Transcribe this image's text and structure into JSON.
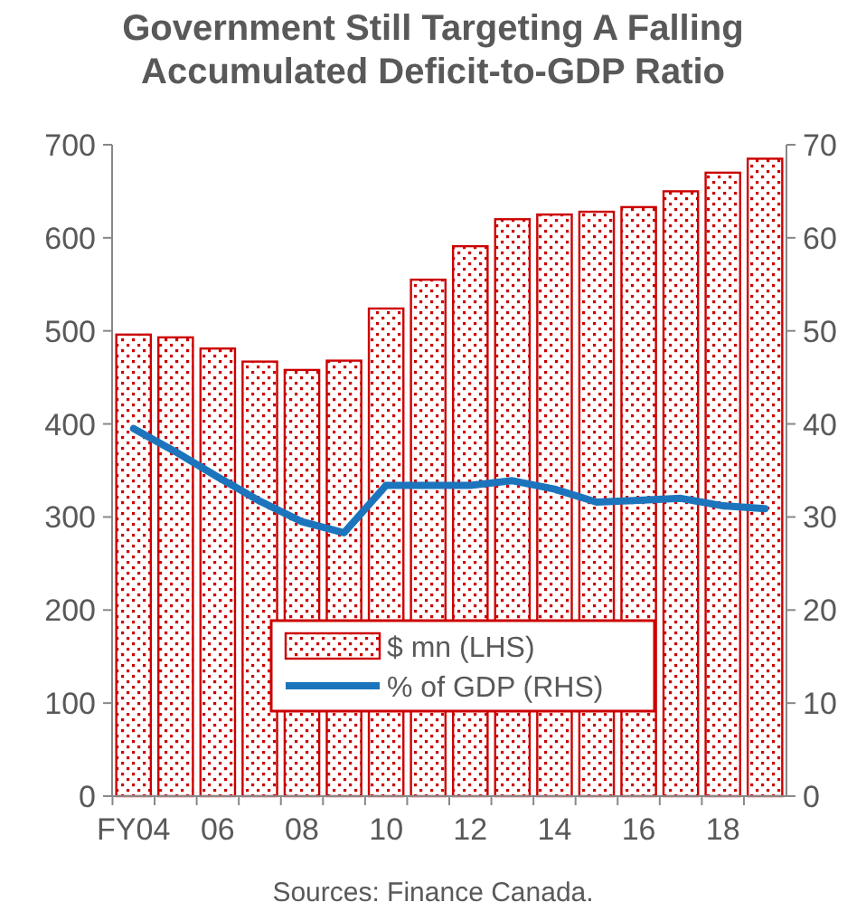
{
  "chart_data": {
    "type": "bar",
    "title": "Government Still Targeting A Falling Accumulated Deficit-to-GDP Ratio",
    "categories": [
      "FY04",
      null,
      "06",
      null,
      "08",
      null,
      "10",
      null,
      "12",
      null,
      "14",
      null,
      "16",
      null,
      "18",
      null
    ],
    "series": [
      {
        "name": "$ mn (LHS)",
        "color": "#cc0000",
        "values": [
          496,
          493,
          481,
          467,
          458,
          468,
          524,
          555,
          591,
          620,
          625,
          628,
          633,
          650,
          670,
          685
        ]
      },
      {
        "name": "% of GDP (RHS)",
        "type": "line",
        "axis": "y2",
        "color": "#1c75bc",
        "values": [
          39.5,
          37,
          34.3,
          31.7,
          29.5,
          28.3,
          33.4,
          33.4,
          33.4,
          33.9,
          33,
          31.6,
          31.8,
          32,
          31.2,
          30.9
        ]
      }
    ],
    "ylim": [
      0,
      700
    ],
    "yticks": [
      0,
      100,
      200,
      300,
      400,
      500,
      600,
      700
    ],
    "y2lim": [
      0,
      70
    ],
    "y2ticks": [
      0,
      10,
      20,
      30,
      40,
      50,
      60,
      70
    ],
    "legend": "bottom",
    "grid": false,
    "annotations": [
      "Sources: Finance Canada."
    ]
  }
}
